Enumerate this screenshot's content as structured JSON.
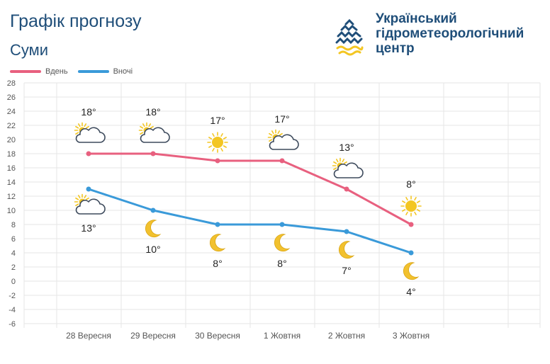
{
  "header": {
    "title": "Графік прогнозу",
    "city": "Суми"
  },
  "org": {
    "lines": [
      "Український",
      "гідрометеорологічний",
      "центр"
    ]
  },
  "colors": {
    "day": "#e8607f",
    "night": "#3a9ad9",
    "title": "#1f4e79",
    "grid": "#e6e6e6",
    "sun": "#f3c623",
    "moon": "#f2c12e"
  },
  "chart_data": {
    "type": "line",
    "categories": [
      "28 Вересня",
      "29 Вересня",
      "30 Вересня",
      "1 Жовтня",
      "2 Жовтня",
      "3 Жовтня"
    ],
    "ylim": [
      -6,
      28
    ],
    "yticks": [
      -6,
      -4,
      -2,
      0,
      2,
      4,
      6,
      8,
      10,
      12,
      14,
      16,
      18,
      20,
      22,
      24,
      26,
      28
    ],
    "grid": true,
    "legend_position": "top-left",
    "series": [
      {
        "key": "day",
        "name": "Вдень",
        "values": [
          18,
          18,
          17,
          17,
          13,
          8
        ],
        "labels": [
          "18°",
          "18°",
          "17°",
          "17°",
          "13°",
          "8°"
        ],
        "icons": [
          "partly-cloudy-icon",
          "partly-cloudy-icon",
          "sun-icon",
          "partly-cloudy-icon",
          "partly-cloudy-icon",
          "sun-icon"
        ]
      },
      {
        "key": "night",
        "name": "Вночі",
        "values": [
          13,
          10,
          8,
          8,
          7,
          4
        ],
        "labels": [
          "13°",
          "10°",
          "8°",
          "8°",
          "7°",
          "4°"
        ],
        "icons": [
          "partly-cloudy-icon",
          "moon-icon",
          "moon-icon",
          "moon-icon",
          "moon-icon",
          "moon-icon"
        ]
      }
    ]
  }
}
